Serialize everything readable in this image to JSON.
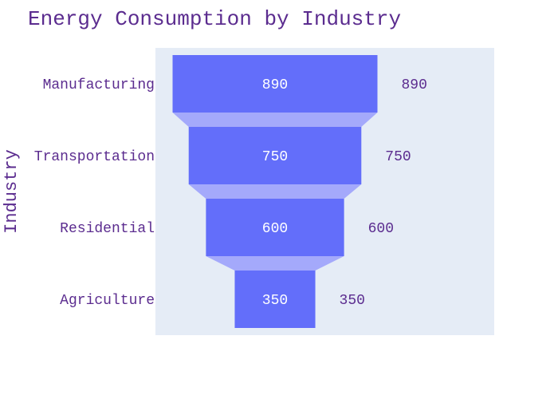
{
  "chart_data": {
    "type": "funnel",
    "title": "Energy Consumption by Industry",
    "ylabel": "Industry",
    "categories": [
      "Manufacturing",
      "Transportation",
      "Residential",
      "Agriculture"
    ],
    "values": [
      890,
      750,
      600,
      350
    ],
    "value_labels": [
      "890",
      "750",
      "600",
      "350"
    ],
    "outside_labels": [
      "890",
      "750",
      "600",
      "350"
    ],
    "colors": {
      "bar": "#636efa",
      "connector": "#a4a9fb",
      "plot_bg": "#e5ecf6",
      "text": "#5b2c8f",
      "inside_text": "#ffffff"
    }
  }
}
